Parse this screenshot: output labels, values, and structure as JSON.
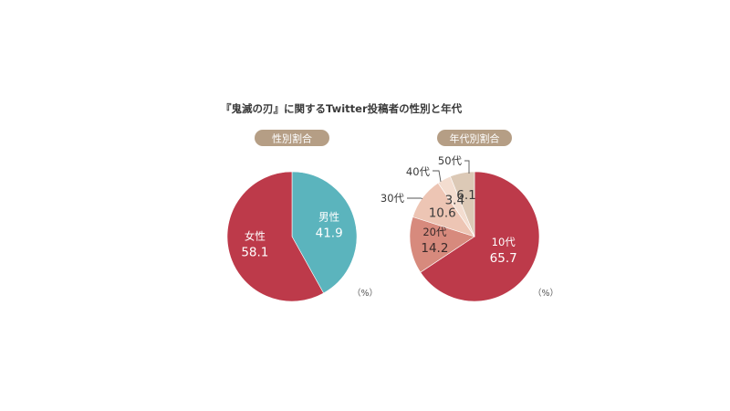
{
  "chart_data": [
    {
      "type": "pie",
      "title": "『鬼滅の刃』に関するTwitter投稿者の性別と年代",
      "pill": "性別割合",
      "unit": "（%）",
      "slices": [
        {
          "label": "男性",
          "value": 41.9,
          "color": "#5bb4bd",
          "text_color": "#ffffff"
        },
        {
          "label": "女性",
          "value": 58.1,
          "color": "#bd3a4a",
          "text_color": "#ffffff"
        }
      ]
    },
    {
      "type": "pie",
      "pill": "年代別割合",
      "unit": "（%）",
      "slices": [
        {
          "label": "10代",
          "value": 65.7,
          "color": "#bd3a4a",
          "text_color": "#ffffff"
        },
        {
          "label": "20代",
          "value": 14.2,
          "color": "#d78a7d",
          "text_color": "#3a2a2a"
        },
        {
          "label": "30代",
          "value": 10.6,
          "color": "#edc5b4",
          "text_color": "#3a3a3a"
        },
        {
          "label": "40代",
          "value": 3.4,
          "color": "#f3ddd0",
          "text_color": "#3a3a3a"
        },
        {
          "label": "50代",
          "value": 6.1,
          "color": "#dcc9b6",
          "text_color": "#3a3a3a"
        }
      ]
    }
  ],
  "colors": {
    "pill": "#b59e85",
    "leader_line": "#555555"
  }
}
